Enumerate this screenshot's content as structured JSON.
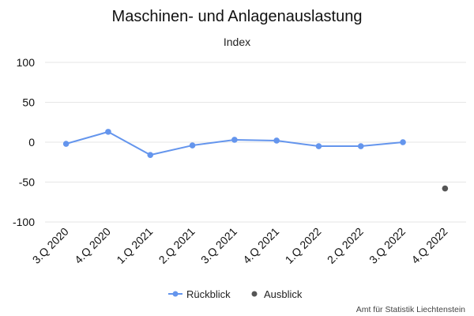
{
  "chart_data": {
    "type": "line",
    "title": "Maschinen- und Anlagenauslastung",
    "subtitle": "Index",
    "xlabel": "",
    "ylabel": "",
    "categories": [
      "3.Q 2020",
      "4.Q 2020",
      "1.Q 2021",
      "2.Q 2021",
      "3.Q 2021",
      "4.Q 2021",
      "1.Q 2022",
      "2.Q 2022",
      "3.Q 2022",
      "4.Q 2022"
    ],
    "ylim": [
      -100,
      100
    ],
    "yticks": [
      100,
      50,
      0,
      -50,
      -100
    ],
    "grid": true,
    "legend_position": "bottom",
    "series": [
      {
        "name": "Rückblick",
        "color": "#6495ED",
        "marker": "circle",
        "line": true,
        "values": [
          -2,
          13,
          -16,
          -4,
          3,
          2,
          -5,
          -5,
          0,
          null
        ]
      },
      {
        "name": "Ausblick",
        "color": "#555555",
        "marker": "circle",
        "line": false,
        "values": [
          null,
          null,
          null,
          null,
          null,
          null,
          null,
          null,
          null,
          -58
        ]
      }
    ],
    "credit": "Amt für Statistik Liechtenstein"
  }
}
